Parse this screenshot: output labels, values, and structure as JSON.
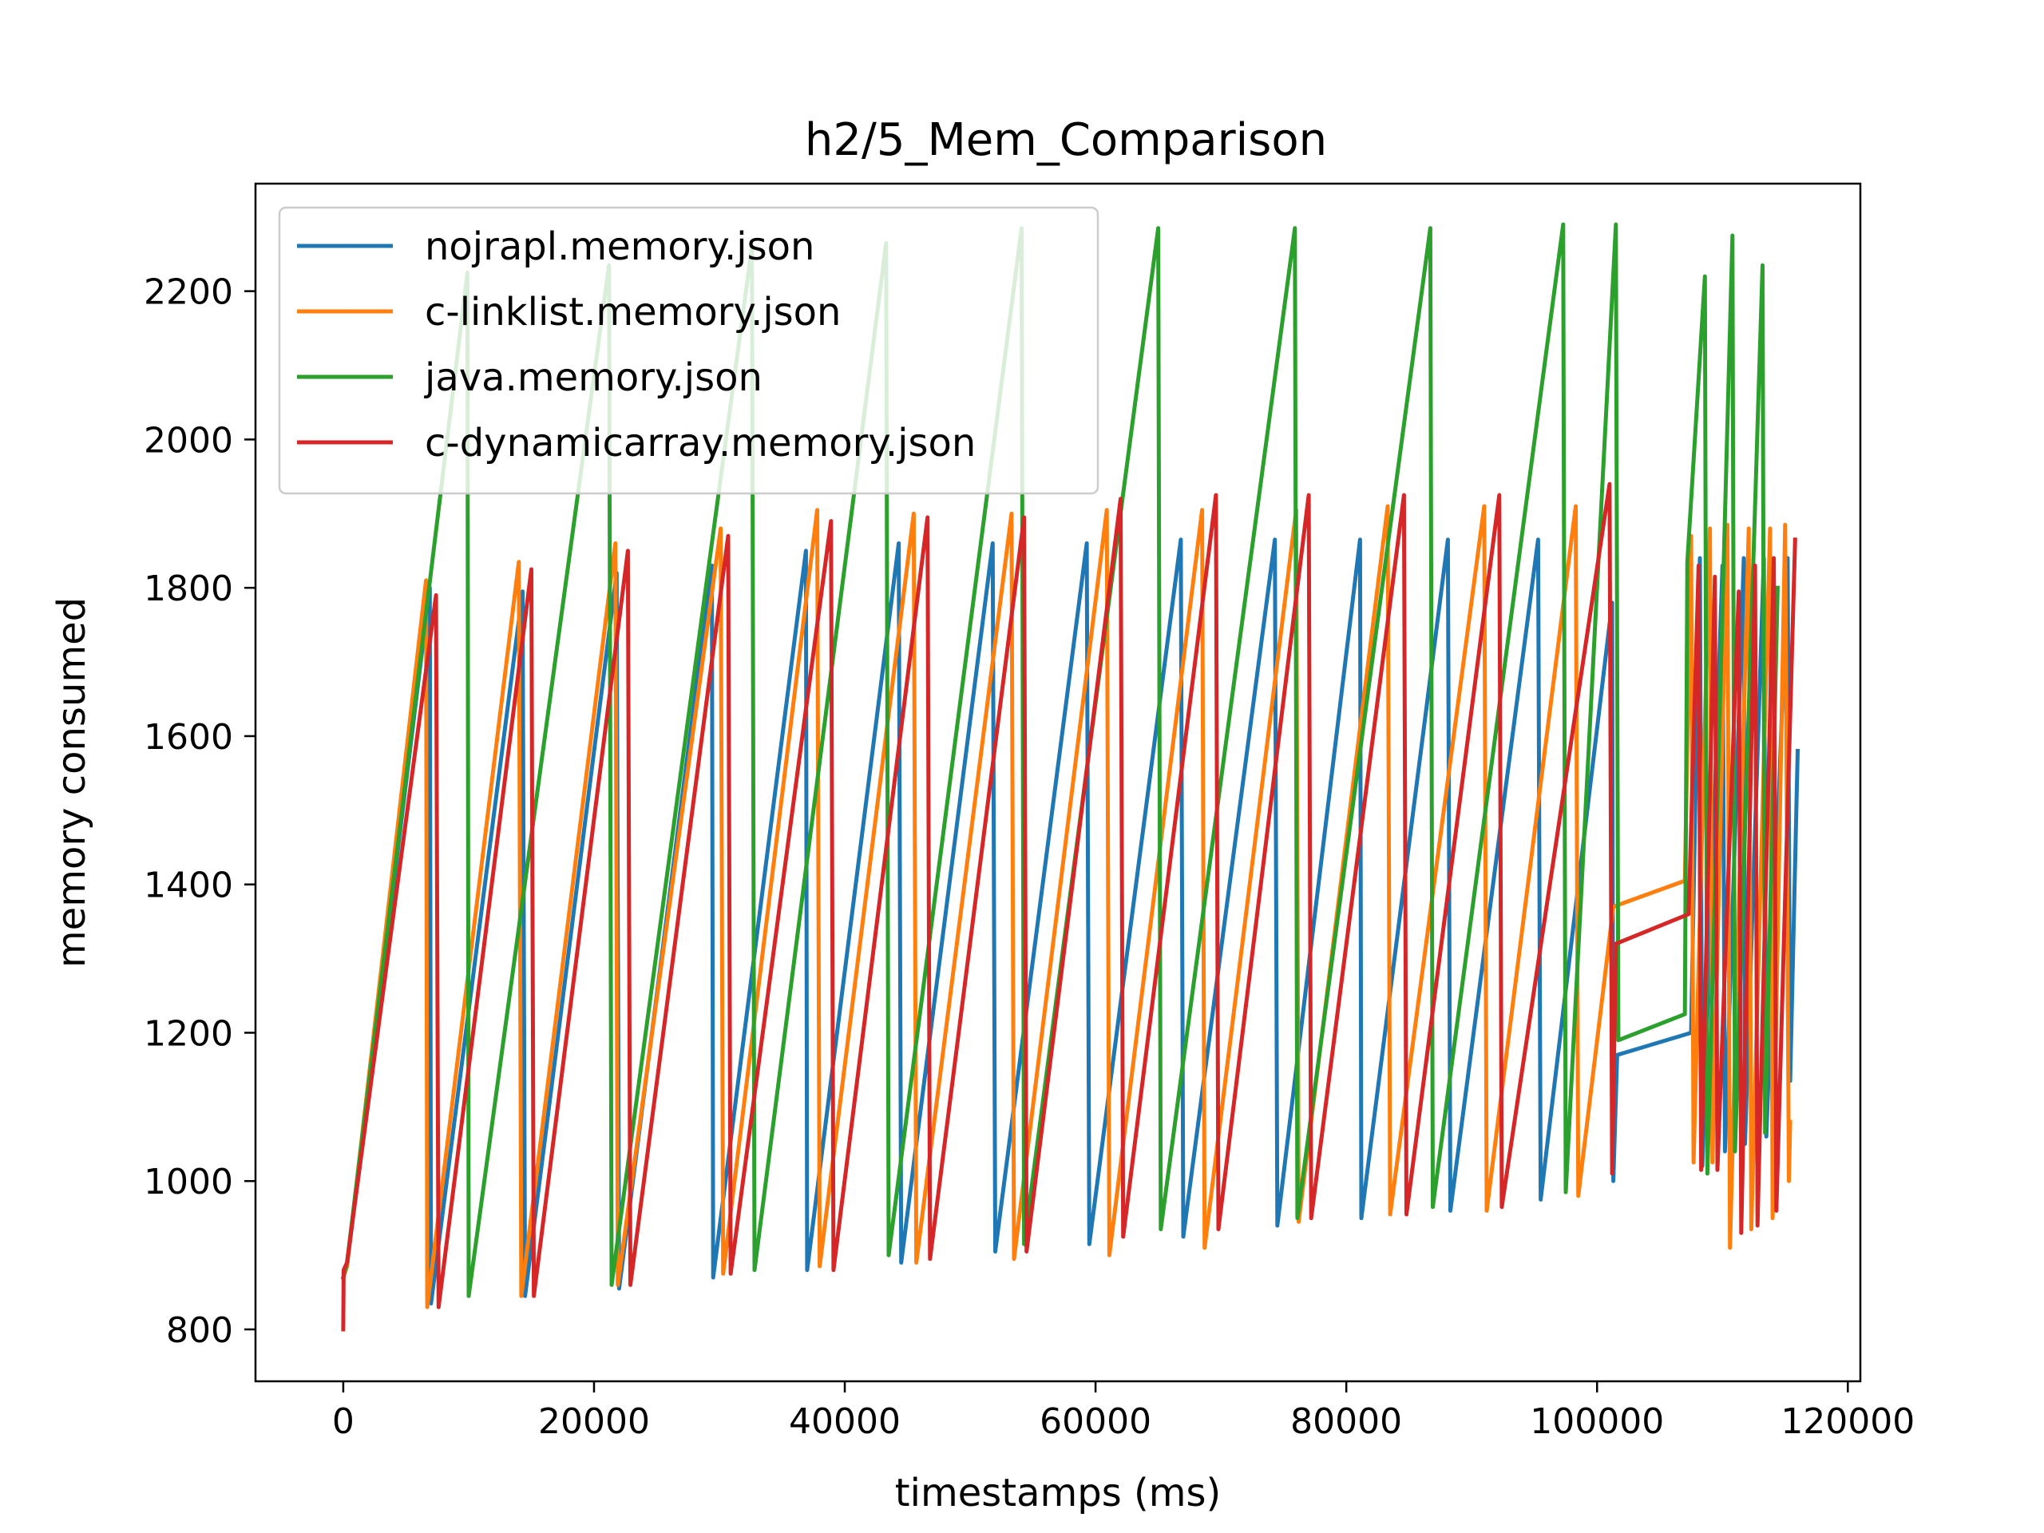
{
  "chart_data": {
    "type": "line",
    "title": "h2/5_Mem_Comparison",
    "xlabel": "timestamps (ms)",
    "ylabel": "memory consumed",
    "xlim": [
      -7000,
      121000
    ],
    "ylim": [
      730,
      2345
    ],
    "xticks": [
      0,
      20000,
      40000,
      60000,
      80000,
      100000,
      120000
    ],
    "yticks": [
      800,
      1000,
      1200,
      1400,
      1600,
      1800,
      2000,
      2200
    ],
    "grid": false,
    "legend_position": "top-left",
    "series": [
      {
        "name": "nojrapl.memory.json",
        "color": "#1f77b4",
        "points": [
          [
            0,
            870
          ],
          [
            300,
            885
          ],
          [
            6900,
            1800
          ],
          [
            7000,
            835
          ],
          [
            14300,
            1795
          ],
          [
            14500,
            845
          ],
          [
            21800,
            1820
          ],
          [
            22000,
            855
          ],
          [
            29400,
            1830
          ],
          [
            29500,
            870
          ],
          [
            36900,
            1850
          ],
          [
            37000,
            880
          ],
          [
            44300,
            1860
          ],
          [
            44500,
            890
          ],
          [
            51800,
            1860
          ],
          [
            52000,
            905
          ],
          [
            59300,
            1860
          ],
          [
            59500,
            915
          ],
          [
            66800,
            1865
          ],
          [
            67000,
            925
          ],
          [
            74300,
            1865
          ],
          [
            74500,
            940
          ],
          [
            81100,
            1865
          ],
          [
            81200,
            950
          ],
          [
            88100,
            1865
          ],
          [
            88300,
            960
          ],
          [
            95300,
            1865
          ],
          [
            95500,
            975
          ],
          [
            101200,
            1780
          ],
          [
            101300,
            1000
          ],
          [
            101600,
            1170
          ],
          [
            107500,
            1200
          ],
          [
            108200,
            1840
          ],
          [
            108400,
            1020
          ],
          [
            110000,
            1830
          ],
          [
            110200,
            1040
          ],
          [
            111700,
            1840
          ],
          [
            111800,
            1050
          ],
          [
            113300,
            1840
          ],
          [
            113500,
            1060
          ],
          [
            115200,
            1840
          ],
          [
            115400,
            1135
          ],
          [
            116000,
            1580
          ]
        ]
      },
      {
        "name": "c-linklist.memory.json",
        "color": "#ff7f0e",
        "points": [
          [
            0,
            870
          ],
          [
            300,
            885
          ],
          [
            6600,
            1810
          ],
          [
            6700,
            830
          ],
          [
            14000,
            1835
          ],
          [
            14200,
            845
          ],
          [
            21700,
            1860
          ],
          [
            21900,
            860
          ],
          [
            30100,
            1880
          ],
          [
            30300,
            875
          ],
          [
            37800,
            1905
          ],
          [
            38000,
            885
          ],
          [
            45500,
            1900
          ],
          [
            45700,
            890
          ],
          [
            53300,
            1900
          ],
          [
            53500,
            895
          ],
          [
            60900,
            1905
          ],
          [
            61100,
            900
          ],
          [
            68500,
            1905
          ],
          [
            68700,
            910
          ],
          [
            76000,
            1905
          ],
          [
            76200,
            945
          ],
          [
            83300,
            1910
          ],
          [
            83500,
            955
          ],
          [
            91000,
            1910
          ],
          [
            91200,
            960
          ],
          [
            98300,
            1910
          ],
          [
            98500,
            980
          ],
          [
            101300,
            1370
          ],
          [
            107000,
            1405
          ],
          [
            107500,
            1870
          ],
          [
            107700,
            1025
          ],
          [
            109000,
            1880
          ],
          [
            109200,
            1025
          ],
          [
            110400,
            1885
          ],
          [
            110600,
            910
          ],
          [
            112100,
            1880
          ],
          [
            112300,
            935
          ],
          [
            113800,
            1880
          ],
          [
            114000,
            950
          ],
          [
            115000,
            1885
          ],
          [
            115300,
            1000
          ],
          [
            115400,
            1080
          ]
        ]
      },
      {
        "name": "java.memory.json",
        "color": "#2ca02c",
        "points": [
          [
            0,
            870
          ],
          [
            300,
            890
          ],
          [
            9900,
            2225
          ],
          [
            10000,
            845
          ],
          [
            21200,
            2235
          ],
          [
            21400,
            860
          ],
          [
            32600,
            2260
          ],
          [
            32800,
            880
          ],
          [
            43300,
            2265
          ],
          [
            43500,
            900
          ],
          [
            54100,
            2285
          ],
          [
            54300,
            915
          ],
          [
            65000,
            2285
          ],
          [
            65200,
            935
          ],
          [
            75900,
            2285
          ],
          [
            76100,
            950
          ],
          [
            86700,
            2285
          ],
          [
            86900,
            965
          ],
          [
            97300,
            2290
          ],
          [
            97500,
            985
          ],
          [
            101500,
            2290
          ],
          [
            101700,
            1190
          ],
          [
            107000,
            1225
          ],
          [
            107200,
            1835
          ],
          [
            108600,
            2220
          ],
          [
            108800,
            1010
          ],
          [
            110800,
            2275
          ],
          [
            111000,
            1040
          ],
          [
            113200,
            2235
          ],
          [
            113400,
            1065
          ],
          [
            114400,
            1800
          ]
        ]
      },
      {
        "name": "c-dynamicarray.memory.json",
        "color": "#d62728",
        "points": [
          [
            0,
            800
          ],
          [
            30,
            880
          ],
          [
            300,
            890
          ],
          [
            7400,
            1790
          ],
          [
            7600,
            830
          ],
          [
            15000,
            1825
          ],
          [
            15200,
            845
          ],
          [
            22700,
            1850
          ],
          [
            22900,
            860
          ],
          [
            30700,
            1870
          ],
          [
            30900,
            875
          ],
          [
            38900,
            1890
          ],
          [
            39100,
            880
          ],
          [
            46600,
            1895
          ],
          [
            46800,
            895
          ],
          [
            54300,
            1895
          ],
          [
            54500,
            905
          ],
          [
            62000,
            1920
          ],
          [
            62200,
            925
          ],
          [
            69600,
            1925
          ],
          [
            69800,
            935
          ],
          [
            77000,
            1925
          ],
          [
            77200,
            950
          ],
          [
            84600,
            1925
          ],
          [
            84800,
            955
          ],
          [
            92200,
            1925
          ],
          [
            92400,
            965
          ],
          [
            101000,
            1940
          ],
          [
            101200,
            1010
          ],
          [
            101500,
            1320
          ],
          [
            107300,
            1360
          ],
          [
            108100,
            1830
          ],
          [
            108300,
            1015
          ],
          [
            109400,
            1815
          ],
          [
            109600,
            1015
          ],
          [
            111300,
            1795
          ],
          [
            111500,
            930
          ],
          [
            112600,
            1830
          ],
          [
            112800,
            940
          ],
          [
            114100,
            1840
          ],
          [
            114300,
            960
          ],
          [
            115800,
            1865
          ]
        ]
      }
    ]
  }
}
